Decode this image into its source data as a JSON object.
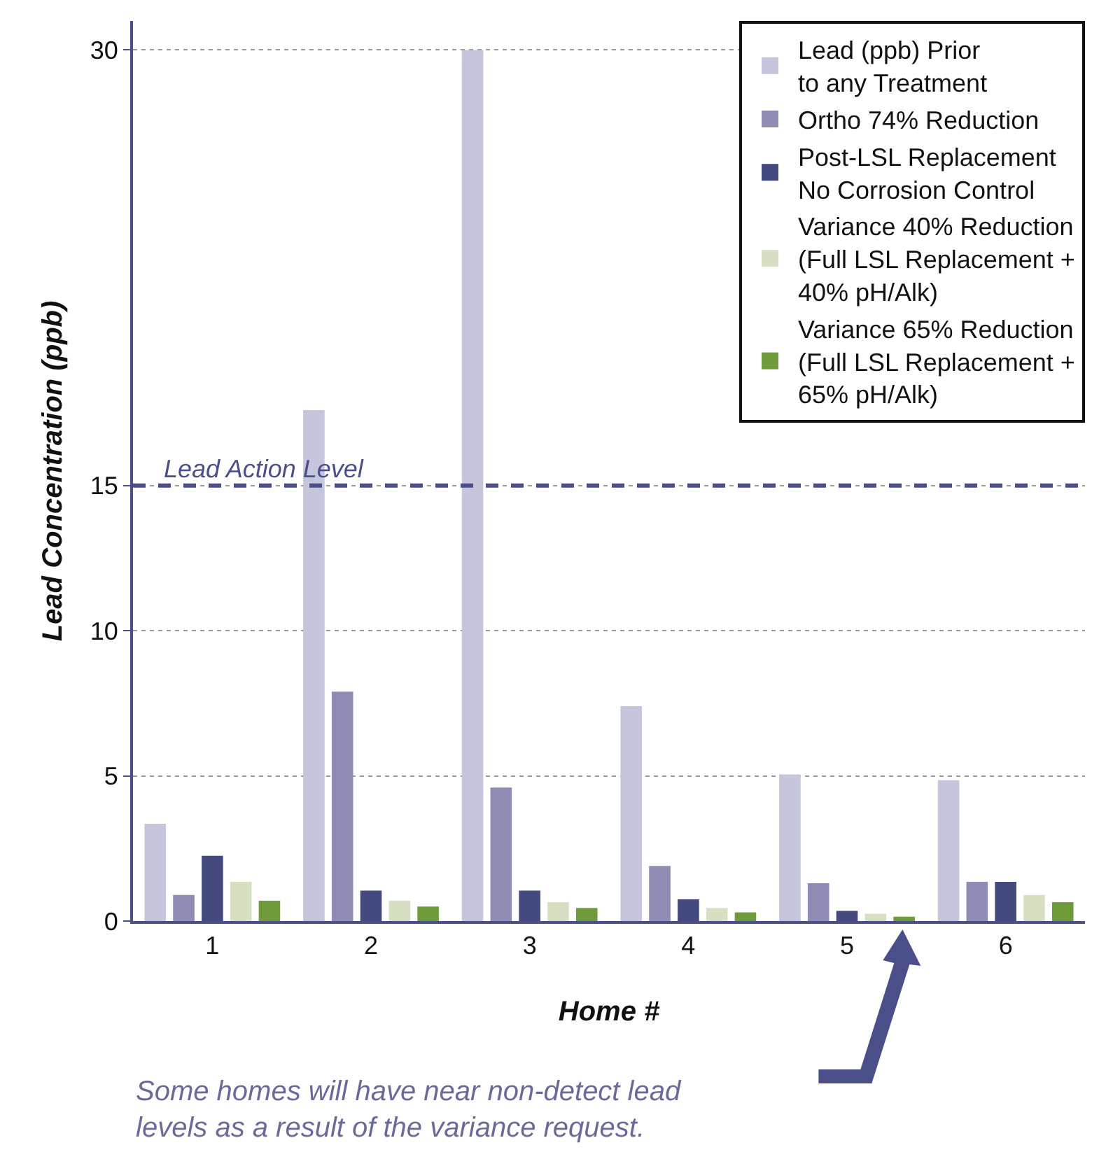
{
  "chart_data": {
    "type": "bar",
    "xlabel": "Home #",
    "ylabel": "Lead Concentration (ppb)",
    "categories": [
      "1",
      "2",
      "3",
      "4",
      "5",
      "6"
    ],
    "series": [
      {
        "name": "Lead (ppb) Prior\nto any Treatment",
        "color": "#c5c5dc",
        "values": [
          3.35,
          17.6,
          30,
          7.4,
          5.05,
          4.85
        ]
      },
      {
        "name": "Ortho 74% Reduction",
        "color": "#8e8cb3",
        "values": [
          0.9,
          7.9,
          4.6,
          1.9,
          1.3,
          1.35
        ]
      },
      {
        "name": "Post-LSL Replacement\nNo Corrosion Control",
        "color": "#444a7e",
        "values": [
          2.25,
          1.05,
          1.05,
          0.75,
          0.35,
          1.35
        ]
      },
      {
        "name": "Variance 40% Reduction\n(Full LSL Replacement +\n40% pH/Alk)",
        "color": "#d6dfc2",
        "values": [
          1.35,
          0.7,
          0.65,
          0.45,
          0.25,
          0.9
        ]
      },
      {
        "name": "Variance 65% Reduction\n(Full LSL Replacement +\n65% pH/Alk)",
        "color": "#6f9a3a",
        "values": [
          0.7,
          0.5,
          0.45,
          0.3,
          0.15,
          0.65
        ]
      }
    ],
    "ylim": [
      0,
      31
    ],
    "yticks": [
      0,
      5,
      10,
      15,
      30
    ],
    "grid": "y",
    "legend": "top right",
    "ref_lines": [
      {
        "axis": "y",
        "value": 15,
        "label": "Lead Action Level",
        "color": "#4a4f8a",
        "line_style": "dashed"
      }
    ],
    "annotations": [
      "Some homes will have near non-detect lead\nlevels as a result of the variance request."
    ]
  }
}
